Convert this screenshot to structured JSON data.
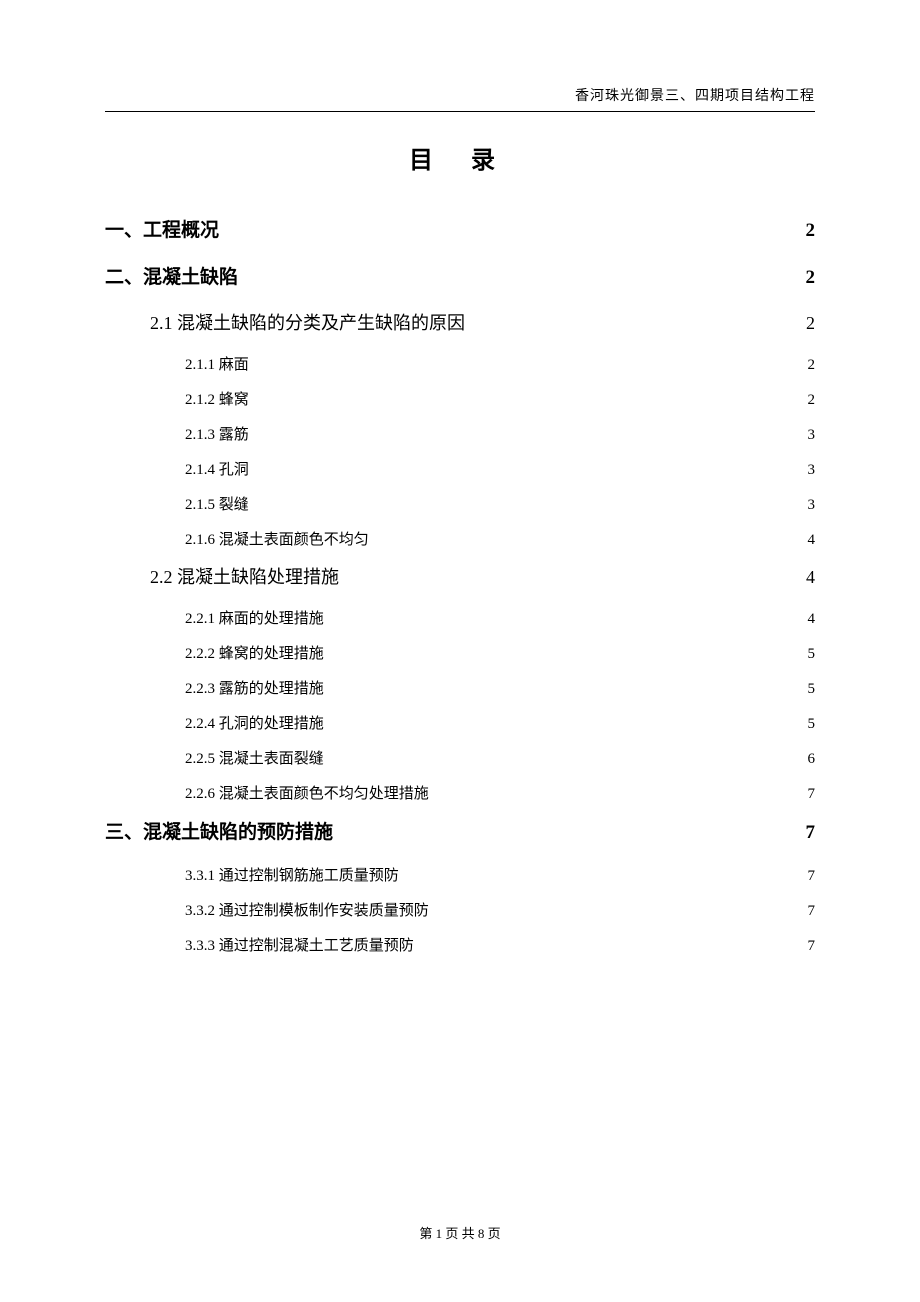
{
  "header": "香河珠光御景三、四期项目结构工程",
  "title": "目    录",
  "toc": [
    {
      "level": 1,
      "label": "一、工程概况",
      "page": "2"
    },
    {
      "level": 1,
      "label": "二、混凝土缺陷",
      "page": "2"
    },
    {
      "level": 2,
      "label": "2.1 混凝土缺陷的分类及产生缺陷的原因",
      "page": "2"
    },
    {
      "level": 3,
      "label": "2.1.1 麻面",
      "page": "2"
    },
    {
      "level": 3,
      "label": "2.1.2 蜂窝",
      "page": "2"
    },
    {
      "level": 3,
      "label": "2.1.3 露筋",
      "page": "3"
    },
    {
      "level": 3,
      "label": "2.1.4 孔洞",
      "page": "3"
    },
    {
      "level": 3,
      "label": "2.1.5 裂缝",
      "page": "3"
    },
    {
      "level": 3,
      "label": "2.1.6 混凝土表面颜色不均匀",
      "page": "4"
    },
    {
      "level": 2,
      "label": "2.2 混凝土缺陷处理措施",
      "page": "4"
    },
    {
      "level": 3,
      "label": "2.2.1 麻面的处理措施",
      "page": "4"
    },
    {
      "level": 3,
      "label": "2.2.2 蜂窝的处理措施",
      "page": "5"
    },
    {
      "level": 3,
      "label": "2.2.3 露筋的处理措施",
      "page": "5"
    },
    {
      "level": 3,
      "label": "2.2.4 孔洞的处理措施",
      "page": "5"
    },
    {
      "level": 3,
      "label": "2.2.5 混凝土表面裂缝",
      "page": "6"
    },
    {
      "level": 3,
      "label": "2.2.6 混凝土表面颜色不均匀处理措施",
      "page": "7"
    },
    {
      "level": 1,
      "label": "三、混凝土缺陷的预防措施",
      "page": "7"
    },
    {
      "level": 3,
      "label": "3.3.1 通过控制钢筋施工质量预防",
      "page": "7"
    },
    {
      "level": 3,
      "label": "3.3.2 通过控制模板制作安装质量预防",
      "page": "7"
    },
    {
      "level": 3,
      "label": "3.3.3 通过控制混凝土工艺质量预防",
      "page": "7"
    }
  ],
  "footer": "第 1 页 共 8 页",
  "colors": {
    "text": "#000000",
    "background": "#ffffff"
  },
  "fonts": {
    "family": "SimSun",
    "title_size": 24,
    "level1_size": 19,
    "level2_size": 18,
    "level3_size": 15,
    "header_size": 14,
    "footer_size": 13
  }
}
